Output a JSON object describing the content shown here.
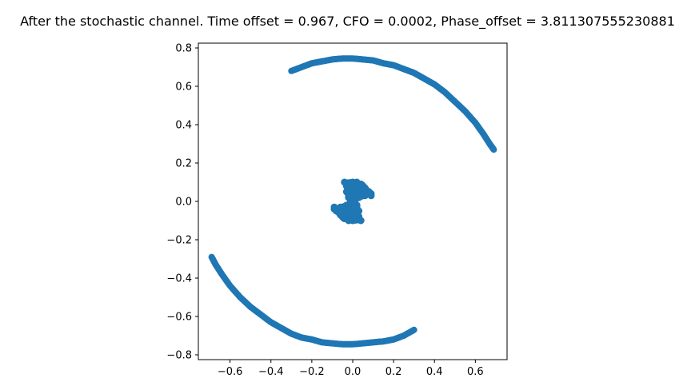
{
  "chart_data": {
    "type": "scatter",
    "title": "After the stochastic channel. Time offset = 0.967, CFO = 0.0002, Phase_offset = 3.811307555230881",
    "xlabel": "",
    "ylabel": "",
    "xlim": [
      -0.755,
      0.755
    ],
    "ylim": [
      -0.825,
      0.825
    ],
    "xticks": [
      -0.6,
      -0.4,
      -0.2,
      0.0,
      0.2,
      0.4,
      0.6
    ],
    "xtick_labels": [
      "−0.6",
      "−0.4",
      "−0.2",
      "0.0",
      "0.2",
      "0.4",
      "0.6"
    ],
    "yticks": [
      -0.8,
      -0.6,
      -0.4,
      -0.2,
      0.0,
      0.2,
      0.4,
      0.6,
      0.8
    ],
    "ytick_labels": [
      "−0.8",
      "−0.6",
      "−0.4",
      "−0.2",
      "0.0",
      "0.2",
      "0.4",
      "0.6",
      "0.8"
    ],
    "grid": false,
    "marker_color": "#1f77b4",
    "series": [
      {
        "values_desc": "upper arc",
        "x": [
          -0.3,
          -0.25,
          -0.2,
          -0.15,
          -0.1,
          -0.05,
          0.0,
          0.05,
          0.1,
          0.15,
          0.2,
          0.25,
          0.3,
          0.35,
          0.4,
          0.45,
          0.5,
          0.55,
          0.6,
          0.64,
          0.67,
          0.69
        ],
        "y": [
          0.68,
          0.7,
          0.72,
          0.73,
          0.74,
          0.745,
          0.745,
          0.74,
          0.735,
          0.72,
          0.71,
          0.69,
          0.67,
          0.64,
          0.61,
          0.57,
          0.52,
          0.47,
          0.41,
          0.35,
          0.3,
          0.27
        ]
      },
      {
        "values_desc": "lower arc",
        "x": [
          -0.69,
          -0.67,
          -0.64,
          -0.6,
          -0.55,
          -0.5,
          -0.45,
          -0.4,
          -0.35,
          -0.3,
          -0.25,
          -0.2,
          -0.15,
          -0.1,
          -0.05,
          0.0,
          0.05,
          0.1,
          0.15,
          0.2,
          0.25,
          0.3
        ],
        "y": [
          -0.29,
          -0.33,
          -0.38,
          -0.44,
          -0.5,
          -0.55,
          -0.59,
          -0.63,
          -0.66,
          -0.69,
          -0.71,
          -0.72,
          -0.735,
          -0.74,
          -0.745,
          -0.745,
          -0.74,
          -0.735,
          -0.73,
          -0.72,
          -0.7,
          -0.67
        ]
      },
      {
        "values_desc": "center upper fan",
        "x": [
          -0.04,
          -0.03,
          -0.02,
          0.0,
          0.02,
          0.04,
          0.06,
          0.08,
          0.09,
          0.09,
          0.06,
          0.03,
          0.01,
          -0.01,
          -0.03,
          -0.02,
          0.0,
          0.02,
          0.04,
          0.06,
          0.03,
          0.0,
          -0.02,
          0.01,
          0.05
        ],
        "y": [
          0.1,
          0.08,
          0.06,
          0.1,
          0.1,
          0.09,
          0.07,
          0.05,
          0.03,
          0.04,
          0.03,
          0.02,
          0.01,
          0.0,
          0.05,
          0.03,
          0.05,
          0.07,
          0.05,
          0.04,
          0.08,
          0.08,
          0.02,
          0.03,
          0.06
        ]
      },
      {
        "values_desc": "center lower fan",
        "x": [
          0.04,
          0.03,
          0.02,
          0.0,
          -0.02,
          -0.04,
          -0.06,
          -0.08,
          -0.09,
          -0.09,
          -0.06,
          -0.03,
          -0.01,
          0.01,
          0.03,
          0.02,
          0.0,
          -0.02,
          -0.04,
          -0.06,
          -0.03,
          0.0,
          0.02,
          -0.01,
          -0.05
        ],
        "y": [
          -0.1,
          -0.08,
          -0.06,
          -0.1,
          -0.1,
          -0.09,
          -0.07,
          -0.05,
          -0.03,
          -0.04,
          -0.03,
          -0.02,
          -0.01,
          0.0,
          -0.05,
          -0.03,
          -0.05,
          -0.07,
          -0.05,
          -0.04,
          -0.08,
          -0.08,
          -0.02,
          -0.03,
          -0.06
        ]
      }
    ]
  }
}
